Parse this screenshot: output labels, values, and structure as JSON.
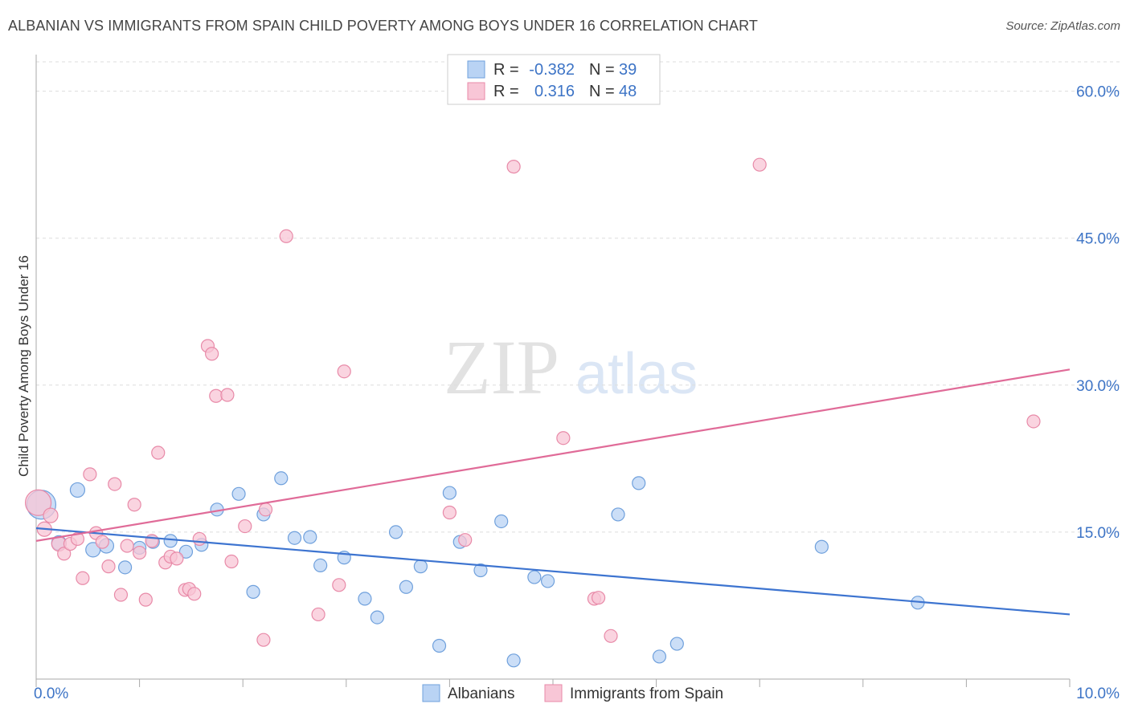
{
  "title": "ALBANIAN VS IMMIGRANTS FROM SPAIN CHILD POVERTY AMONG BOYS UNDER 16 CORRELATION CHART",
  "source": "Source: ZipAtlas.com",
  "watermark": {
    "zip": "ZIP",
    "atlas": "atlas"
  },
  "legend_top": [
    {
      "r_label": "R =",
      "r_value": "-0.382",
      "n_label": "N =",
      "n_value": "39"
    },
    {
      "r_label": "R =",
      "r_value": "0.316",
      "n_label": "N =",
      "n_value": "48"
    }
  ],
  "legend_bottom": [
    "Albanians",
    "Immigrants from Spain"
  ],
  "colors": {
    "albanians_fill": "#b9d3f4",
    "albanians_stroke": "#6fa0dc",
    "albanians_line": "#3d74d0",
    "spain_fill": "#f8c6d6",
    "spain_stroke": "#e88aa8",
    "spain_line": "#e06b98",
    "tick_label": "#3d74c6",
    "grid": "#dddddd"
  },
  "chart_data": {
    "type": "scatter",
    "title": "ALBANIAN VS IMMIGRANTS FROM SPAIN CHILD POVERTY AMONG BOYS UNDER 16 CORRELATION CHART",
    "xlabel": "",
    "ylabel": "Child Poverty Among Boys Under 16",
    "xlim": [
      0,
      10
    ],
    "ylim": [
      0,
      63
    ],
    "x_tick_labels": [
      "0.0%",
      "10.0%"
    ],
    "y_ticks": [
      15,
      30,
      45,
      60
    ],
    "y_tick_labels": [
      "15.0%",
      "30.0%",
      "45.0%",
      "60.0%"
    ],
    "grid": true,
    "legend_position": "top-center",
    "series": [
      {
        "name": "Albanians",
        "trend": [
          [
            0,
            15.4
          ],
          [
            10,
            6.6
          ]
        ],
        "points": [
          [
            0.05,
            17.8,
            18
          ],
          [
            0.22,
            13.9,
            9
          ],
          [
            0.4,
            19.3,
            9
          ],
          [
            0.55,
            13.2,
            9
          ],
          [
            0.68,
            13.6,
            9
          ],
          [
            0.86,
            11.4,
            8
          ],
          [
            1.0,
            13.4,
            8
          ],
          [
            1.13,
            14.0,
            8
          ],
          [
            1.3,
            14.1,
            8
          ],
          [
            1.45,
            13.0,
            8
          ],
          [
            1.6,
            13.7,
            8
          ],
          [
            1.75,
            17.3,
            8
          ],
          [
            1.96,
            18.9,
            8
          ],
          [
            2.1,
            8.9,
            8
          ],
          [
            2.2,
            16.8,
            8
          ],
          [
            2.37,
            20.5,
            8
          ],
          [
            2.5,
            14.4,
            8
          ],
          [
            2.65,
            14.5,
            8
          ],
          [
            2.75,
            11.6,
            8
          ],
          [
            2.98,
            12.4,
            8
          ],
          [
            3.18,
            8.2,
            8
          ],
          [
            3.3,
            6.3,
            8
          ],
          [
            3.48,
            15.0,
            8
          ],
          [
            3.58,
            9.4,
            8
          ],
          [
            3.72,
            11.5,
            8
          ],
          [
            3.9,
            3.4,
            8
          ],
          [
            4.0,
            19.0,
            8
          ],
          [
            4.1,
            14.0,
            8
          ],
          [
            4.3,
            11.1,
            8
          ],
          [
            4.5,
            16.1,
            8
          ],
          [
            4.62,
            1.9,
            8
          ],
          [
            4.82,
            10.4,
            8
          ],
          [
            4.95,
            10.0,
            8
          ],
          [
            5.63,
            16.8,
            8
          ],
          [
            5.83,
            20.0,
            8
          ],
          [
            6.03,
            2.3,
            8
          ],
          [
            6.2,
            3.6,
            8
          ],
          [
            7.6,
            13.5,
            8
          ],
          [
            8.53,
            7.8,
            8
          ]
        ]
      },
      {
        "name": "Immigrants from Spain",
        "trend": [
          [
            0,
            14.1
          ],
          [
            10,
            31.6
          ]
        ],
        "points": [
          [
            0.02,
            18.0,
            16
          ],
          [
            0.08,
            15.3,
            9
          ],
          [
            0.14,
            16.7,
            9
          ],
          [
            0.22,
            13.8,
            9
          ],
          [
            0.27,
            12.8,
            8
          ],
          [
            0.33,
            13.8,
            8
          ],
          [
            0.4,
            14.3,
            8
          ],
          [
            0.45,
            10.3,
            8
          ],
          [
            0.52,
            20.9,
            8
          ],
          [
            0.58,
            14.9,
            8
          ],
          [
            0.64,
            14.0,
            8
          ],
          [
            0.7,
            11.5,
            8
          ],
          [
            0.76,
            19.9,
            8
          ],
          [
            0.82,
            8.6,
            8
          ],
          [
            0.88,
            13.6,
            8
          ],
          [
            0.95,
            17.8,
            8
          ],
          [
            1.0,
            12.9,
            8
          ],
          [
            1.06,
            8.1,
            8
          ],
          [
            1.12,
            14.1,
            8
          ],
          [
            1.18,
            23.1,
            8
          ],
          [
            1.25,
            11.9,
            8
          ],
          [
            1.3,
            12.5,
            8
          ],
          [
            1.36,
            12.3,
            8
          ],
          [
            1.44,
            9.1,
            8
          ],
          [
            1.48,
            9.2,
            8
          ],
          [
            1.53,
            8.7,
            8
          ],
          [
            1.58,
            14.3,
            8
          ],
          [
            1.66,
            34.0,
            8
          ],
          [
            1.7,
            33.2,
            8
          ],
          [
            1.74,
            28.9,
            8
          ],
          [
            1.85,
            29.0,
            8
          ],
          [
            1.89,
            12.0,
            8
          ],
          [
            2.02,
            15.6,
            8
          ],
          [
            2.2,
            4.0,
            8
          ],
          [
            2.22,
            17.3,
            8
          ],
          [
            2.42,
            45.2,
            8
          ],
          [
            2.73,
            6.6,
            8
          ],
          [
            2.93,
            9.6,
            8
          ],
          [
            2.98,
            31.4,
            8
          ],
          [
            4.0,
            17.0,
            8
          ],
          [
            4.15,
            14.2,
            8
          ],
          [
            4.62,
            52.3,
            8
          ],
          [
            5.1,
            24.6,
            8
          ],
          [
            5.4,
            8.2,
            8
          ],
          [
            5.44,
            8.3,
            8
          ],
          [
            5.56,
            4.4,
            8
          ],
          [
            7.0,
            52.5,
            8
          ],
          [
            9.65,
            26.3,
            8
          ]
        ]
      }
    ]
  }
}
